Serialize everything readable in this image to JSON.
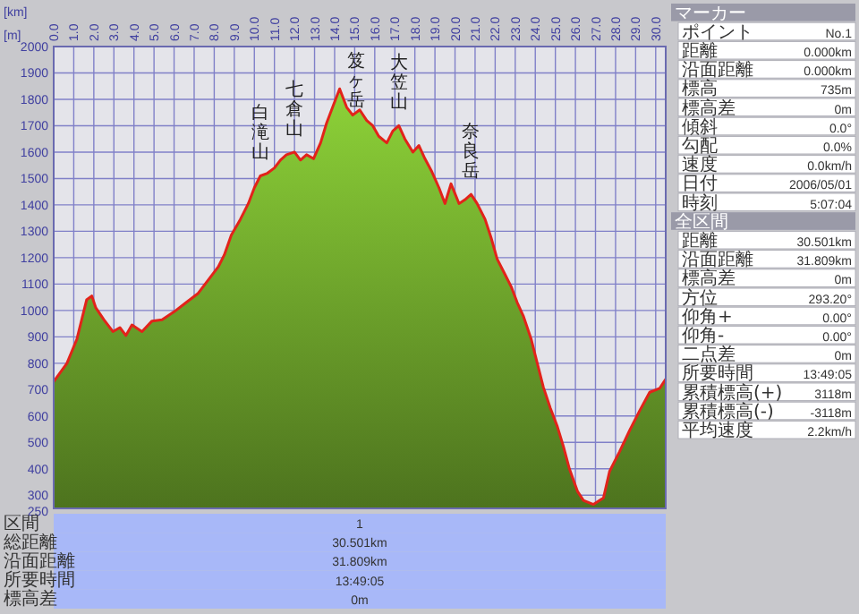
{
  "chart_data": {
    "type": "area",
    "xlabel": "[km]",
    "ylabel": "[m]",
    "xlim": [
      0,
      30.5
    ],
    "xticks": [
      {
        "value": 0,
        "label": "0.0"
      },
      {
        "value": 1,
        "label": "1.0"
      },
      {
        "value": 2,
        "label": "2.0"
      },
      {
        "value": 3,
        "label": "3.0"
      },
      {
        "value": 4,
        "label": "4.0"
      },
      {
        "value": 5,
        "label": "5.0"
      },
      {
        "value": 6,
        "label": "6.0"
      },
      {
        "value": 7,
        "label": "7.0"
      },
      {
        "value": 8,
        "label": "8.0"
      },
      {
        "value": 9,
        "label": "9.0"
      },
      {
        "value": 10,
        "label": "10.0"
      },
      {
        "value": 11,
        "label": "11.0"
      },
      {
        "value": 12,
        "label": "12.0"
      },
      {
        "value": 13,
        "label": "13.0"
      },
      {
        "value": 14,
        "label": "14.0"
      },
      {
        "value": 15,
        "label": "15.0"
      },
      {
        "value": 16,
        "label": "16.0"
      },
      {
        "value": 17,
        "label": "17.0"
      },
      {
        "value": 18,
        "label": "18.0"
      },
      {
        "value": 19,
        "label": "19.0"
      },
      {
        "value": 20,
        "label": "20.0"
      },
      {
        "value": 21,
        "label": "21.0"
      },
      {
        "value": 22,
        "label": "22.0"
      },
      {
        "value": 23,
        "label": "23.0"
      },
      {
        "value": 24,
        "label": "24.0"
      },
      {
        "value": 25,
        "label": "25.0"
      },
      {
        "value": 26,
        "label": "26.0"
      },
      {
        "value": 27,
        "label": "27.0"
      },
      {
        "value": 28,
        "label": "28.0"
      },
      {
        "value": 29,
        "label": "29.0"
      },
      {
        "value": 30,
        "label": "30.0"
      }
    ],
    "ylim": [
      250,
      2000
    ],
    "yticks": [
      250,
      300,
      400,
      500,
      600,
      700,
      800,
      900,
      1000,
      1100,
      1200,
      1300,
      1400,
      1500,
      1600,
      1700,
      1800,
      1900,
      2000
    ],
    "grid": true,
    "series": [
      {
        "color": "#6a9e2a",
        "x": [
          0,
          0.66,
          1.15,
          1.64,
          1.9,
          2.1,
          2.5,
          2.95,
          3.3,
          3.6,
          3.9,
          4.4,
          4.9,
          5.4,
          6.0,
          6.6,
          7.2,
          7.7,
          8.2,
          8.5,
          8.85,
          9.3,
          9.7,
          10.0,
          10.3,
          10.65,
          11.0,
          11.3,
          11.6,
          12.0,
          12.3,
          12.6,
          12.95,
          13.3,
          13.6,
          13.9,
          14.25,
          14.6,
          14.9,
          15.25,
          15.6,
          15.9,
          16.2,
          16.6,
          16.9,
          17.2,
          17.5,
          17.9,
          18.2,
          18.5,
          18.85,
          19.2,
          19.5,
          19.8,
          20.2,
          20.5,
          20.8,
          21.1,
          21.5,
          21.8,
          22.1,
          22.5,
          22.8,
          23.1,
          23.4,
          23.8,
          24.1,
          24.4,
          24.75,
          25.1,
          25.4,
          25.7,
          26.1,
          26.4,
          26.9,
          27.4,
          27.7,
          28.2,
          28.7,
          29.2,
          29.7,
          30.2,
          30.5
        ],
        "values": [
          730,
          800,
          890,
          1040,
          1055,
          1010,
          965,
          920,
          935,
          905,
          945,
          920,
          960,
          965,
          995,
          1030,
          1065,
          1115,
          1165,
          1210,
          1285,
          1345,
          1405,
          1465,
          1510,
          1520,
          1540,
          1570,
          1590,
          1600,
          1570,
          1590,
          1575,
          1635,
          1710,
          1770,
          1840,
          1770,
          1740,
          1760,
          1720,
          1700,
          1660,
          1635,
          1680,
          1700,
          1650,
          1600,
          1625,
          1575,
          1525,
          1465,
          1405,
          1480,
          1405,
          1420,
          1440,
          1405,
          1345,
          1275,
          1195,
          1135,
          1090,
          1030,
          980,
          890,
          800,
          710,
          630,
          560,
          485,
          400,
          315,
          280,
          265,
          290,
          390,
          465,
          545,
          620,
          690,
          705,
          740
        ]
      }
    ],
    "annotations": [
      {
        "text": "白滝山",
        "x": 10.3,
        "y": 1510
      },
      {
        "text": "七倉山",
        "x": 12.0,
        "y": 1600
      },
      {
        "text": "笈ヶ岳",
        "x": 14.25,
        "y": 1840
      },
      {
        "text": "大笠山",
        "x": 17.2,
        "y": 1700
      },
      {
        "text": "奈良岳",
        "x": 20.8,
        "y": 1440
      },
      "マーカー",
      "ポイント No.1",
      "距離 0.000km",
      "沿面距離 0.000km",
      "標高 735m",
      "標高差 0m",
      "傾斜 0.0°",
      "勾配 0.0%",
      "速度 0.0km/h",
      "日付 2006/05/01",
      "時刻 5:07:04",
      "全区間",
      "距離 30.501km",
      "沿面距離 31.809km",
      "標高差 0m",
      "方位 293.20°",
      "仰角+ 0.00°",
      "仰角- 0.00°",
      "二点差 0m",
      "所要時間 13:49:05",
      "累積標高(+) 3118m",
      "累積標高(-) -3118m",
      "平均速度 2.2km/h",
      "区間 1",
      "総距離 30.501km",
      "沿面距離 31.809km",
      "所要時間 13:49:05",
      "標高差 0m"
    ]
  }
}
